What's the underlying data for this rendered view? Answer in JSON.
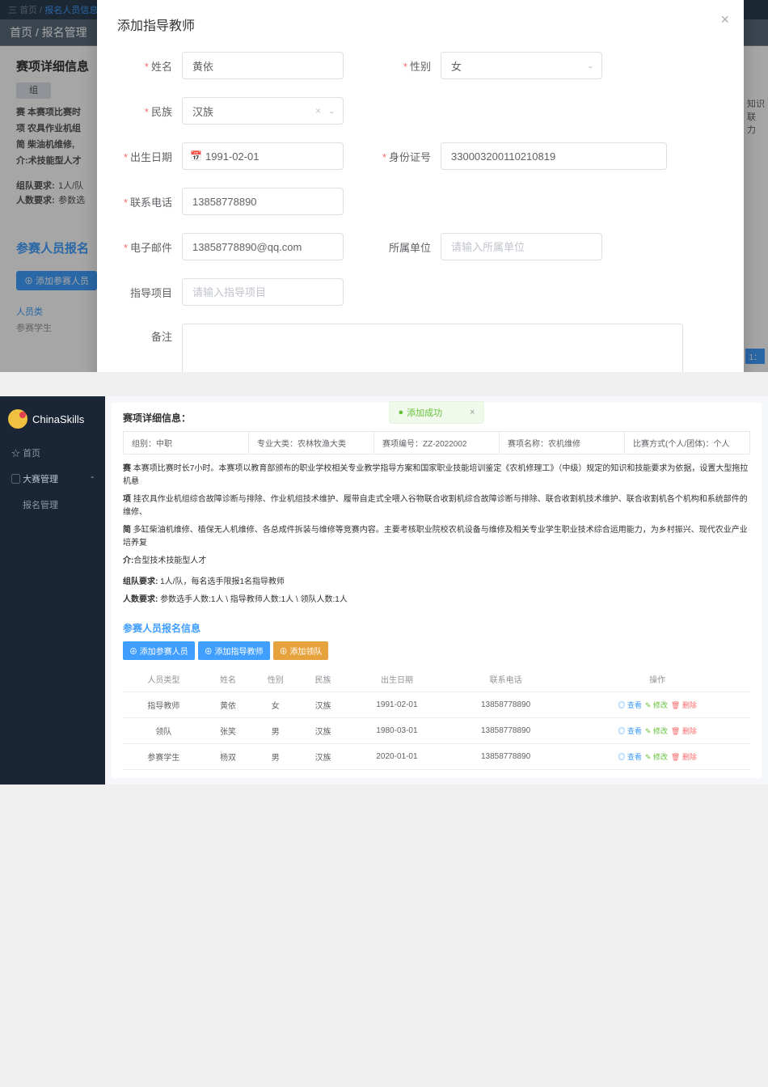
{
  "top": {
    "menu_icon": "三",
    "home": "首页 /",
    "crumb_link": "报名人员信息管理"
  },
  "bg": {
    "crumb": "首页 / 报名管理",
    "section_title": "赛项详细信息",
    "btn_label": "组",
    "competition_heading": "赛 本赛项比赛时",
    "line1": "项 农具作业机组",
    "line2": "简 柴油机维修,",
    "line3": "介:术技能型人才",
    "team_req_label": "组队要求:",
    "team_req_val": "1人/队",
    "people_req_label": "人数要求:",
    "people_req_val": "参数选",
    "section2_title": "参赛人员报名",
    "add_btn": "⊕ 添加参赛人员",
    "person_type": "人员类",
    "student": "参赛学生",
    "side_txt1": "知识",
    "side_txt2": "联",
    "side_txt3": "力",
    "side_num": "1："
  },
  "modal": {
    "title": "添加指导教师",
    "labels": {
      "name": "姓名",
      "gender": "性别",
      "ethnicity": "民族",
      "birth": "出生日期",
      "id": "身份证号",
      "phone": "联系电话",
      "email": "电子邮件",
      "org": "所属单位",
      "guide": "指导项目",
      "remark": "备注"
    },
    "values": {
      "name": "黄依",
      "gender": "女",
      "ethnicity": "汉族",
      "birth": "1991-02-01",
      "id": "330003200110210819",
      "phone": "13858778890",
      "email": "13858778890@qq.com"
    },
    "placeholders": {
      "org": "请输入所属单位",
      "guide": "请输入指导项目"
    }
  },
  "sidebar": {
    "brand": "ChinaSkills",
    "items": [
      "首页",
      "大赛管理",
      "报名管理"
    ]
  },
  "alert": {
    "text": "添加成功"
  },
  "panel": {
    "title": "赛项详细信息：",
    "info": {
      "group": "组别：中职",
      "major": "专业大类：农林牧渔大类",
      "code": "赛项编号：ZZ-2022002",
      "name": "赛项名称：农机维修",
      "mode": "比赛方式(个人/团体)：个人"
    },
    "desc_prefix_bold": "赛",
    "desc": "本赛项比赛时长7小时。本赛项以教育部颁布的职业学校相关专业教学指导方案和国家职业技能培训鉴定《农机修理工》（中级）规定的知识和技能要求为依据，设置大型拖拉机悬",
    "desc2_prefix": "项",
    "desc2": "挂农具作业机组综合故障诊断与排除、作业机组技术维护、履带自走式全喂入谷物联合收割机综合故障诊断与排除、联合收割机技术维护、联合收割机各个机构和系统部件的维修、",
    "desc3_prefix": "简",
    "desc3": "多缸柴油机维修、植保无人机维修、各总成件拆装与维修等竞赛内容。主要考核职业院校农机设备与维修及相关专业学生职业技术综合运用能力，为乡村振兴、现代农业产业培养复",
    "desc4_prefix": "介:",
    "desc4": "合型技术技能型人才",
    "team_req_label": "组队要求:",
    "team_req": "1人/队，每名选手限报1名指导教师",
    "people_req_label": "人数要求:",
    "people_req": "参数选手人数:1人 \\ 指导教师人数:1人 \\ 领队人数:1人",
    "reg_title": "参赛人员报名信息",
    "buttons": [
      "⊕ 添加参赛人员",
      "⊕ 添加指导教师",
      "⊕ 添加领队"
    ]
  },
  "table": {
    "headers": [
      "人员类型",
      "姓名",
      "性别",
      "民族",
      "出生日期",
      "联系电话",
      "操作"
    ],
    "rows": [
      [
        "指导教师",
        "黄依",
        "女",
        "汉族",
        "1991-02-01",
        "13858778890"
      ],
      [
        "领队",
        "张笑",
        "男",
        "汉族",
        "1980-03-01",
        "13858778890"
      ],
      [
        "参赛学生",
        "杨双",
        "男",
        "汉族",
        "2020-01-01",
        "13858778890"
      ]
    ],
    "ops": {
      "view": "◎ 查看",
      "edit": "✎ 修改",
      "del": "🗑 删除"
    }
  }
}
